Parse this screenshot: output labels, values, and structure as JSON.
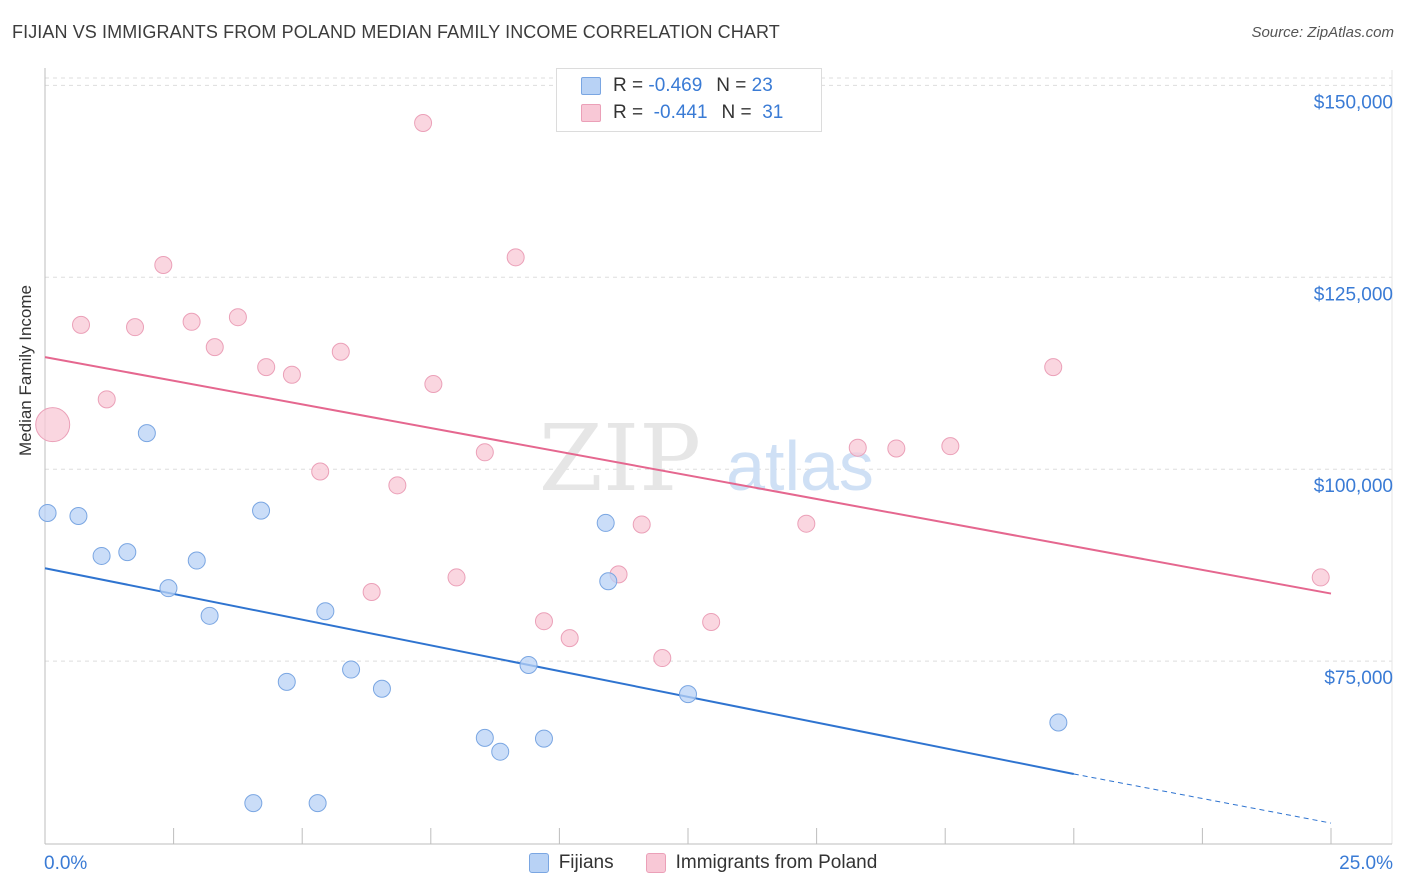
{
  "title": "FIJIAN VS IMMIGRANTS FROM POLAND MEDIAN FAMILY INCOME CORRELATION CHART",
  "source": "Source: ZipAtlas.com",
  "watermark": {
    "zip": "ZIP",
    "atlas": "atlas"
  },
  "colors": {
    "fijians_fill": "#b8d2f5",
    "fijians_stroke": "#7aa6e2",
    "fijians_line": "#2f74d0",
    "poland_fill": "#f8c8d6",
    "poland_stroke": "#eba0b8",
    "poland_line": "#e5678f",
    "axis_text": "#3a7bd5",
    "grid": "#dddddd"
  },
  "legend_top": {
    "rows": [
      {
        "r_label": "R =",
        "r_value": "-0.469",
        "n_label": "N =",
        "n_value": "23"
      },
      {
        "r_label": "R =",
        "r_value": "-0.441",
        "n_label": "N =",
        "n_value": "31"
      }
    ]
  },
  "chart_data": {
    "type": "scatter",
    "title": "FIJIAN VS IMMIGRANTS FROM POLAND MEDIAN FAMILY INCOME CORRELATION CHART",
    "xlabel": "",
    "ylabel": "Median Family Income",
    "xlim": [
      0,
      25
    ],
    "ylim": [
      53000,
      152000
    ],
    "x_tick_labels": [
      "0.0%",
      "25.0%"
    ],
    "y_ticks": [
      75000,
      100000,
      125000,
      150000
    ],
    "y_tick_labels": [
      "$75,000",
      "$100,000",
      "$125,000",
      "$150,000"
    ],
    "grid": true,
    "legend_position": "bottom",
    "series": [
      {
        "name": "Fijians",
        "points": [
          [
            0.05,
            94300
          ],
          [
            0.65,
            93900
          ],
          [
            1.1,
            88700
          ],
          [
            1.6,
            89200
          ],
          [
            1.98,
            104700
          ],
          [
            2.4,
            84500
          ],
          [
            2.95,
            88100
          ],
          [
            3.2,
            80900
          ],
          [
            4.05,
            56500
          ],
          [
            4.2,
            94600
          ],
          [
            4.7,
            72300
          ],
          [
            5.3,
            56500
          ],
          [
            5.45,
            81500
          ],
          [
            5.95,
            73900
          ],
          [
            6.55,
            71400
          ],
          [
            8.55,
            65000
          ],
          [
            8.85,
            63200
          ],
          [
            9.4,
            74500
          ],
          [
            9.7,
            64900
          ],
          [
            10.9,
            93000
          ],
          [
            10.95,
            85400
          ],
          [
            12.5,
            70700
          ],
          [
            19.7,
            67000
          ]
        ],
        "trend": {
          "x": [
            0,
            20
          ],
          "y": [
            87100,
            60300
          ]
        },
        "trend_dashed": {
          "x": [
            20,
            25
          ],
          "y": [
            60300,
            53900
          ]
        }
      },
      {
        "name": "Immigrants from Poland",
        "points": [
          [
            0.15,
            105800
          ],
          [
            0.7,
            118800
          ],
          [
            1.2,
            109100
          ],
          [
            1.75,
            118500
          ],
          [
            2.3,
            126600
          ],
          [
            2.85,
            119200
          ],
          [
            3.3,
            115900
          ],
          [
            3.75,
            119800
          ],
          [
            4.3,
            113300
          ],
          [
            4.8,
            112300
          ],
          [
            5.35,
            99700
          ],
          [
            5.75,
            115300
          ],
          [
            6.35,
            84000
          ],
          [
            6.85,
            97900
          ],
          [
            7.55,
            111100
          ],
          [
            7.35,
            145100
          ],
          [
            8.0,
            85900
          ],
          [
            8.55,
            102200
          ],
          [
            9.15,
            127600
          ],
          [
            9.7,
            80200
          ],
          [
            10.2,
            78000
          ],
          [
            11.15,
            86300
          ],
          [
            11.6,
            92800
          ],
          [
            12.0,
            75400
          ],
          [
            12.95,
            80100
          ],
          [
            14.8,
            92900
          ],
          [
            15.8,
            102800
          ],
          [
            16.55,
            102700
          ],
          [
            17.6,
            103000
          ],
          [
            19.6,
            113300
          ],
          [
            24.8,
            85900
          ]
        ],
        "trend": {
          "x": [
            0,
            25
          ],
          "y": [
            114600,
            83800
          ]
        }
      }
    ]
  }
}
